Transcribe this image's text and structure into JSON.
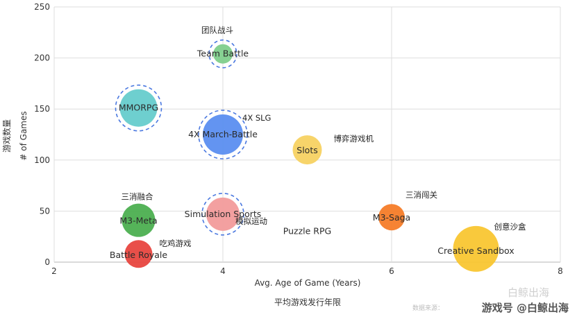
{
  "chart_data": {
    "type": "scatter",
    "subtype": "bubble",
    "xlabel": "Avg. Age of Game (Years)",
    "xlabel_cn": "平均游戏发行年限",
    "ylabel": "# of Games",
    "ylabel_cn": "游戏数量",
    "xlim": [
      2,
      8
    ],
    "ylim": [
      0,
      250
    ],
    "x_ticks": [
      2,
      4,
      6,
      8
    ],
    "y_ticks": [
      0,
      50,
      100,
      150,
      200,
      250
    ],
    "grid": true,
    "points": [
      {
        "name": "Team Battle",
        "cn": "团队战斗",
        "x": 4.0,
        "y": 204,
        "size": 14,
        "color": "#7fcf8c",
        "highlight": true
      },
      {
        "name": "MMORPG",
        "cn": "",
        "x": 3.0,
        "y": 151,
        "size": 27,
        "color": "#66cccc",
        "highlight": true
      },
      {
        "name": "4X March-Battle",
        "cn": "4X SLG",
        "x": 4.0,
        "y": 125,
        "size": 29,
        "color": "#5b8ef0",
        "highlight": true
      },
      {
        "name": "Slots",
        "cn": "博弈游戏机",
        "x": 5.0,
        "y": 110,
        "size": 21,
        "color": "#f7d262",
        "highlight": false
      },
      {
        "name": "M3-Meta",
        "cn": "三消融合",
        "x": 3.0,
        "y": 41,
        "size": 24,
        "color": "#4caf50",
        "highlight": false
      },
      {
        "name": "Simulation Sports",
        "cn": "模拟运动",
        "x": 4.0,
        "y": 47,
        "size": 24,
        "color": "#f29b9b",
        "highlight": true
      },
      {
        "name": "Puzzle RPG",
        "cn": "",
        "x": 5.0,
        "y": 31,
        "size": 0,
        "color": "#888888",
        "highlight": false
      },
      {
        "name": "M3-Saga",
        "cn": "三消闯关",
        "x": 6.0,
        "y": 44,
        "size": 19,
        "color": "#f57c28",
        "highlight": false
      },
      {
        "name": "Battle Royale",
        "cn": "吃鸡游戏",
        "x": 3.0,
        "y": 8,
        "size": 20,
        "color": "#e8463f",
        "highlight": false
      },
      {
        "name": "Creative Sandbox",
        "cn": "创意沙盒",
        "x": 7.0,
        "y": 13,
        "size": 33,
        "color": "#f9c631",
        "highlight": false
      }
    ]
  },
  "watermark": {
    "text": "游戏号 @白鲸出海",
    "faint": "白鲸出海",
    "source": "数据来源："
  }
}
